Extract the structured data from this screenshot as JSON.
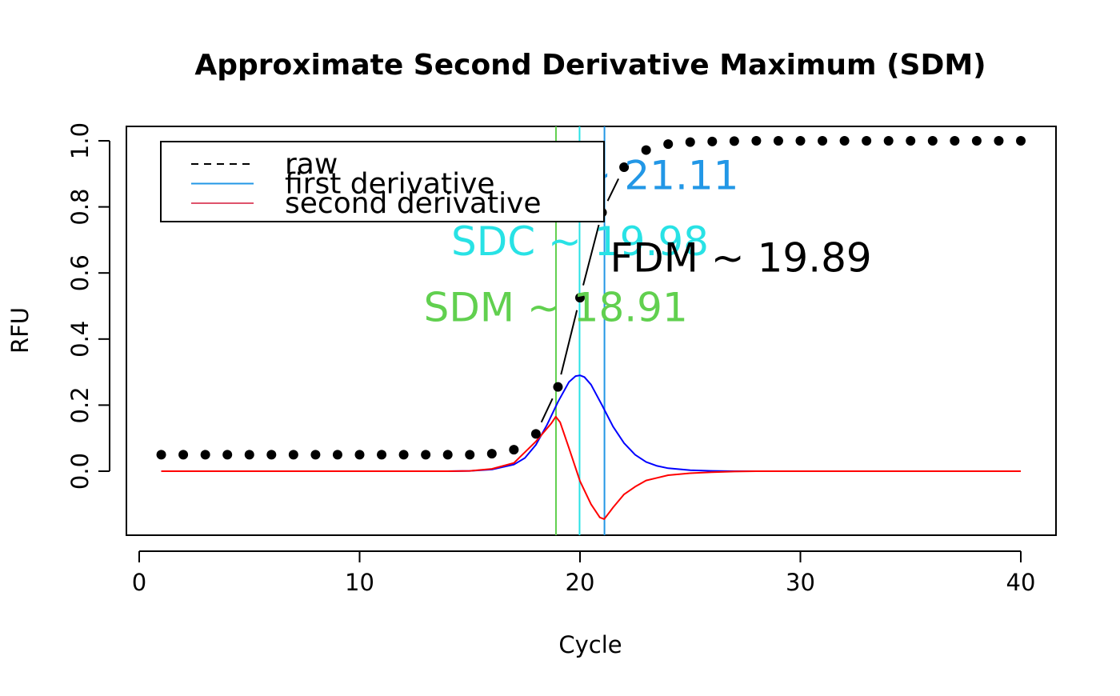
{
  "chart_data": {
    "type": "line",
    "title": "Approximate Second Derivative Maximum (SDM)",
    "xlabel": "Cycle",
    "ylabel": "RFU",
    "xlim": [
      0,
      40
    ],
    "ylim": [
      -0.15,
      1.0
    ],
    "x_ticks": [
      0,
      10,
      20,
      30,
      40
    ],
    "y_ticks": [
      0.0,
      0.2,
      0.4,
      0.6,
      0.8,
      1.0
    ],
    "x_tick_labels": [
      "0",
      "10",
      "20",
      "30",
      "40"
    ],
    "y_tick_labels": [
      "0.0",
      "0.2",
      "0.4",
      "0.6",
      "0.8",
      "1.0"
    ],
    "grid": false,
    "legend": {
      "position": "top-left",
      "entries": [
        {
          "label": "raw",
          "color": "#000000",
          "style": "dashed"
        },
        {
          "label": "first derivative",
          "color": "#2297E6",
          "style": "solid"
        },
        {
          "label": "second derivative",
          "color": "#DF536B",
          "style": "solid"
        }
      ]
    },
    "series": [
      {
        "key": "raw",
        "style": "points",
        "color": "#000000",
        "x": [
          1,
          2,
          3,
          4,
          5,
          6,
          7,
          8,
          9,
          10,
          11,
          12,
          13,
          14,
          15,
          16,
          17,
          18,
          19,
          20,
          21,
          22,
          23,
          24,
          25,
          26,
          27,
          28,
          29,
          30,
          31,
          32,
          33,
          34,
          35,
          36,
          37,
          38,
          39,
          40
        ],
        "y": [
          0.05,
          0.05,
          0.05,
          0.05,
          0.05,
          0.05,
          0.05,
          0.05,
          0.05,
          0.05,
          0.05,
          0.05,
          0.05,
          0.05,
          0.05,
          0.053,
          0.065,
          0.113,
          0.255,
          0.525,
          0.783,
          0.92,
          0.972,
          0.99,
          0.996,
          0.998,
          0.999,
          1.0,
          1.0,
          1.0,
          1.0,
          1.0,
          1.0,
          1.0,
          1.0,
          1.0,
          1.0,
          1.0,
          1.0,
          1.0
        ]
      },
      {
        "key": "first_derivative",
        "style": "line",
        "color": "#0000FF",
        "x": [
          1,
          14,
          15,
          16,
          17,
          17.5,
          18,
          18.5,
          19,
          19.5,
          19.8,
          20,
          20.2,
          20.5,
          21,
          21.5,
          22,
          22.5,
          23,
          23.5,
          24,
          25,
          26,
          27,
          28,
          30,
          40
        ],
        "y": [
          0,
          0,
          0.001,
          0.005,
          0.02,
          0.04,
          0.08,
          0.14,
          0.21,
          0.27,
          0.288,
          0.29,
          0.285,
          0.262,
          0.2,
          0.135,
          0.085,
          0.05,
          0.028,
          0.016,
          0.009,
          0.003,
          0.001,
          0,
          0,
          0,
          0
        ]
      },
      {
        "key": "second_derivative",
        "style": "line",
        "color": "#FF0000",
        "x": [
          1,
          14,
          15,
          16,
          17,
          18,
          18.7,
          18.9,
          19.1,
          19.5,
          20,
          20.5,
          20.9,
          21.1,
          21.5,
          22,
          22.5,
          23,
          23.5,
          24,
          25,
          26,
          27,
          28,
          30,
          40
        ],
        "y": [
          0,
          0,
          0.001,
          0.007,
          0.025,
          0.09,
          0.145,
          0.165,
          0.148,
          0.07,
          -0.03,
          -0.1,
          -0.14,
          -0.145,
          -0.11,
          -0.07,
          -0.047,
          -0.028,
          -0.02,
          -0.012,
          -0.006,
          -0.003,
          -0.001,
          0,
          0,
          0
        ]
      }
    ],
    "vertical_lines": [
      {
        "x": 18.91,
        "color": "#61D04F"
      },
      {
        "x": 19.98,
        "color": "#28E2E5"
      },
      {
        "x": 21.11,
        "color": "#2297E6"
      }
    ],
    "annotations": [
      {
        "text": "SDM ~ 18.91",
        "x": 18.9,
        "y": 0.495,
        "color": "#61D04F"
      },
      {
        "text": "SDC ~ 19.98",
        "x": 20.0,
        "y": 0.695,
        "color": "#28E2E5"
      },
      {
        "text": "SDm ~ 21.11",
        "x": 21.11,
        "y": 0.895,
        "color": "#2297E6"
      },
      {
        "text": "FDM ~  19.89",
        "x": 27.3,
        "y": 0.645,
        "color": "#000000"
      }
    ]
  }
}
